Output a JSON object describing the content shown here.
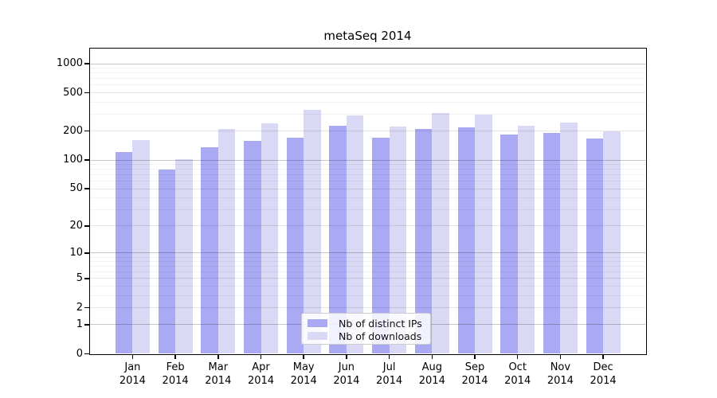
{
  "figure": {
    "background": "#ffffff"
  },
  "chart_data": {
    "type": "bar",
    "title": "metaSeq 2014",
    "categories": [
      "Jan",
      "Feb",
      "Mar",
      "Apr",
      "May",
      "Jun",
      "Jul",
      "Aug",
      "Sep",
      "Oct",
      "Nov",
      "Dec"
    ],
    "year": "2014",
    "series": [
      {
        "name": "Nb of distinct IPs",
        "color": "#a9a9f4",
        "values": [
          121,
          80,
          136,
          159,
          172,
          226,
          171,
          209,
          219,
          184,
          193,
          167
        ]
      },
      {
        "name": "Nb of downloads",
        "color": "#d9d9f6",
        "values": [
          162,
          102,
          212,
          240,
          330,
          292,
          222,
          310,
          296,
          226,
          247,
          200
        ]
      }
    ],
    "xlabel": "",
    "ylabel": "",
    "y_ticks": [
      1000,
      500,
      200,
      100,
      50,
      20,
      10,
      5,
      2,
      1,
      0
    ],
    "y_scale": "log10(1+value)",
    "ylim": [
      0,
      1435
    ],
    "grid": "horizontal log gridlines (majors at powers of 10, minors at 2-9 multiples)",
    "legend": {
      "position": "bottom-center",
      "frame": true
    }
  },
  "colors": {
    "axis": "#000000",
    "grid_major": "rgba(0,0,0,0.22)",
    "grid_mid": "rgba(0,0,0,0.10)",
    "grid_minor": "rgba(0,0,0,0.05)",
    "legend_border": "#cccccc",
    "text": "#000000"
  }
}
